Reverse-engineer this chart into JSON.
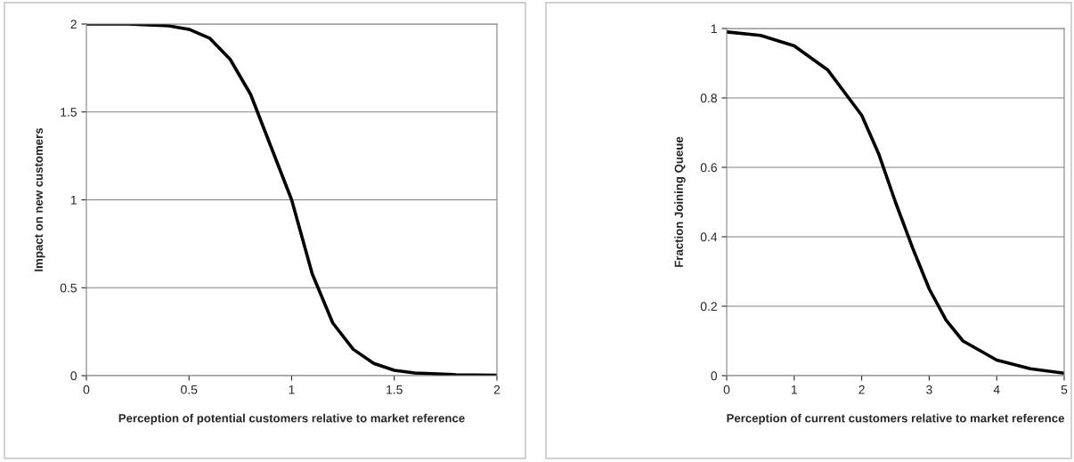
{
  "chart_data": [
    {
      "type": "line",
      "xlabel": "Perception of potential customers relative to market reference",
      "ylabel": "Impact on new customers",
      "color": "#000000",
      "x": [
        0,
        0.2,
        0.4,
        0.5,
        0.6,
        0.7,
        0.8,
        0.9,
        1.0,
        1.1,
        1.2,
        1.3,
        1.4,
        1.5,
        1.6,
        1.8,
        2.0
      ],
      "values": [
        2,
        2,
        1.99,
        1.97,
        1.92,
        1.8,
        1.6,
        1.3,
        1.0,
        0.58,
        0.3,
        0.15,
        0.07,
        0.03,
        0.015,
        0.005,
        0.002
      ],
      "xlim": [
        0,
        2
      ],
      "ylim": [
        0,
        2
      ],
      "xticks": [
        0,
        0.5,
        1,
        1.5,
        2
      ],
      "yticks": [
        0,
        0.5,
        1,
        1.5,
        2
      ],
      "grid": "y"
    },
    {
      "type": "line",
      "xlabel": "Perception of current customers relative to market reference",
      "ylabel": "Fraction Joining Queue",
      "color": "#000000",
      "x": [
        0,
        0.5,
        1,
        1.5,
        2,
        2.25,
        2.5,
        2.75,
        3,
        3.25,
        3.5,
        4,
        4.5,
        5
      ],
      "values": [
        0.99,
        0.98,
        0.95,
        0.88,
        0.75,
        0.64,
        0.5,
        0.37,
        0.25,
        0.16,
        0.1,
        0.045,
        0.02,
        0.007
      ],
      "xlim": [
        0,
        5
      ],
      "ylim": [
        0,
        1
      ],
      "xticks": [
        0,
        1,
        2,
        3,
        4,
        5
      ],
      "yticks": [
        0,
        0.2,
        0.4,
        0.6,
        0.8,
        1
      ],
      "grid": "y"
    }
  ]
}
